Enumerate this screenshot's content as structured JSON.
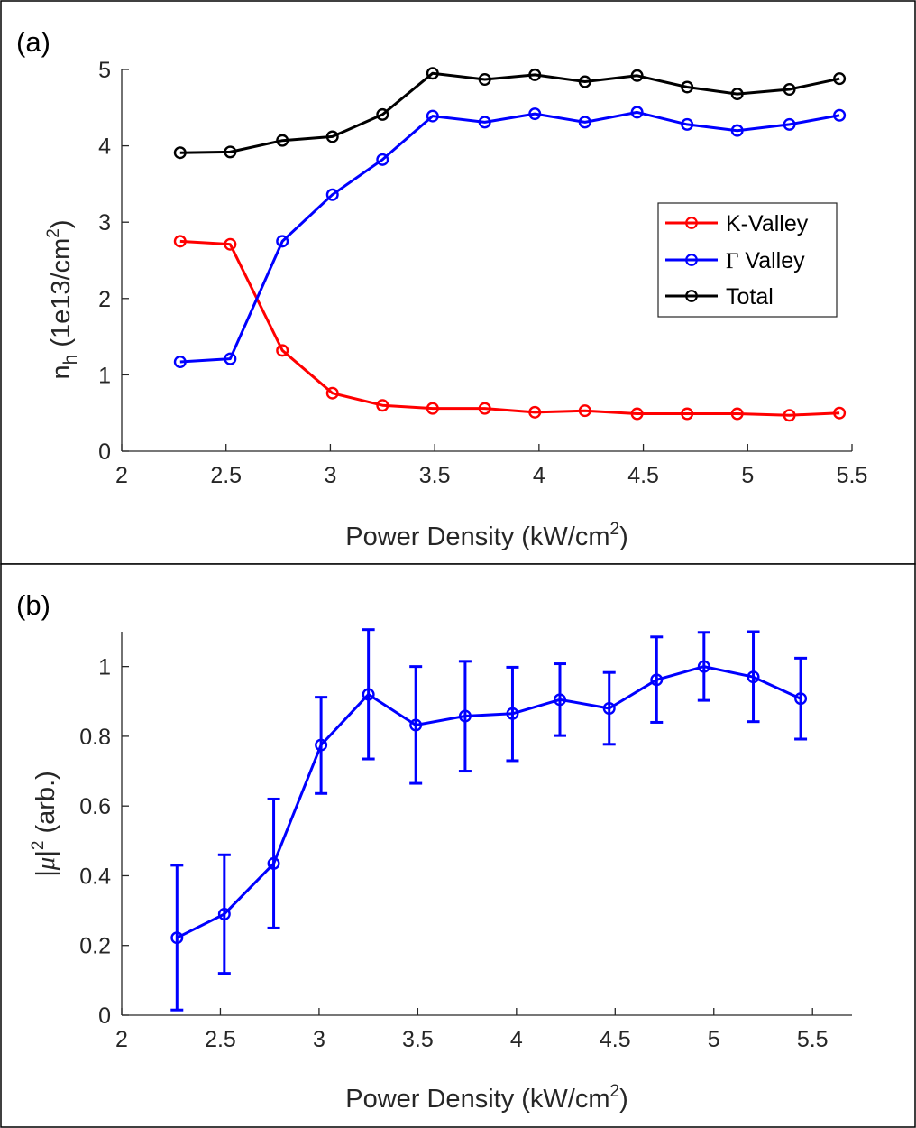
{
  "chart_data": [
    {
      "type": "line",
      "panel_label": "(a)",
      "xlabel": "Power Density (kW/cm²)",
      "xlabel_main": "Power Density (kW/cm",
      "xlabel_sup": "2",
      "xlabel_end": ")",
      "ylabel": "n_h (1e13/cm²)",
      "ylabel_main": "n",
      "ylabel_sub": "h",
      "ylabel_rest": " (1e13/cm",
      "ylabel_sup": "2",
      "ylabel_end": ")",
      "xlim": [
        2,
        5.5
      ],
      "ylim": [
        0,
        5
      ],
      "xticks": [
        "2",
        "2.5",
        "3",
        "3.5",
        "4",
        "4.5",
        "5",
        "5.5"
      ],
      "yticks": [
        "0",
        "1",
        "2",
        "3",
        "4",
        "5"
      ],
      "legend_position": "right",
      "x": [
        2.28,
        2.52,
        2.77,
        3.01,
        3.25,
        3.49,
        3.74,
        3.98,
        4.22,
        4.47,
        4.71,
        4.95,
        5.2,
        5.44
      ],
      "series": [
        {
          "name": "K-Valley",
          "color": "#ff0000",
          "values": [
            2.75,
            2.71,
            1.32,
            0.76,
            0.6,
            0.56,
            0.56,
            0.51,
            0.53,
            0.49,
            0.49,
            0.49,
            0.47,
            0.5
          ]
        },
        {
          "name": "Γ Valley",
          "name_symbol": "Γ",
          "name_rest": " Valley",
          "color": "#0000ff",
          "values": [
            1.17,
            1.21,
            2.75,
            3.36,
            3.82,
            4.39,
            4.31,
            4.42,
            4.31,
            4.44,
            4.28,
            4.2,
            4.28,
            4.4
          ]
        },
        {
          "name": "Total",
          "color": "#000000",
          "values": [
            3.91,
            3.92,
            4.07,
            4.12,
            4.41,
            4.95,
            4.87,
            4.93,
            4.84,
            4.92,
            4.77,
            4.68,
            4.74,
            4.88
          ]
        }
      ]
    },
    {
      "type": "line",
      "panel_label": "(b)",
      "xlabel": "Power Density (kW/cm²)",
      "xlabel_main": "Power Density (kW/cm",
      "xlabel_sup": "2",
      "xlabel_end": ")",
      "ylabel": "|μ|² (arb.)",
      "ylabel_main": "|",
      "ylabel_mu": "μ",
      "ylabel_bar": "|",
      "ylabel_sup": "2",
      "ylabel_end": " (arb.)",
      "xlim": [
        2,
        5.7
      ],
      "ylim": [
        0,
        1.1
      ],
      "xticks": [
        "2",
        "2.5",
        "3",
        "3.5",
        "4",
        "4.5",
        "5",
        "5.5"
      ],
      "yticks": [
        "0",
        "0.2",
        "0.4",
        "0.6",
        "0.8",
        "1"
      ],
      "error_bars": true,
      "x": [
        2.28,
        2.52,
        2.77,
        3.01,
        3.25,
        3.49,
        3.74,
        3.98,
        4.22,
        4.47,
        4.71,
        4.95,
        5.2,
        5.44
      ],
      "series": [
        {
          "color": "#0000ff",
          "values": [
            0.222,
            0.29,
            0.435,
            0.775,
            0.92,
            0.832,
            0.858,
            0.865,
            0.905,
            0.88,
            0.962,
            1.0,
            0.97,
            0.908
          ],
          "lower": [
            0.015,
            0.12,
            0.25,
            0.636,
            0.735,
            0.665,
            0.7,
            0.73,
            0.802,
            0.777,
            0.84,
            0.903,
            0.842,
            0.792
          ],
          "upper": [
            0.43,
            0.46,
            0.62,
            0.912,
            1.106,
            1.0,
            1.015,
            0.998,
            1.008,
            0.983,
            1.085,
            1.098,
            1.1,
            1.024
          ]
        }
      ]
    }
  ]
}
